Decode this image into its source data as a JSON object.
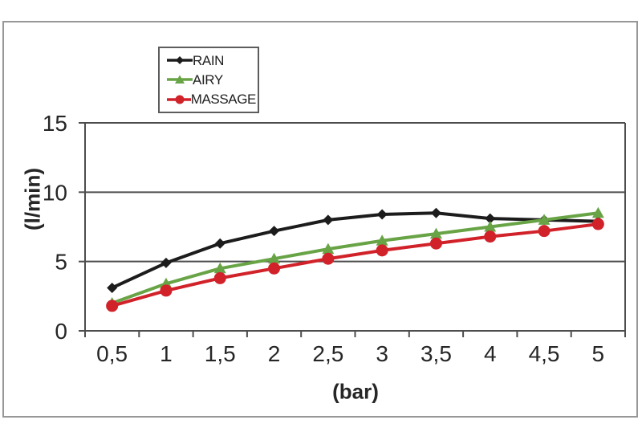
{
  "chart_data": {
    "type": "line",
    "title": "",
    "xlabel": "(bar)",
    "ylabel": "(l/min)",
    "x": [
      0.5,
      1,
      1.5,
      2,
      2.5,
      3,
      3.5,
      4,
      4.5,
      5
    ],
    "x_tick_labels": [
      "0,5",
      "1",
      "1,5",
      "2",
      "2,5",
      "3",
      "3,5",
      "4",
      "4,5",
      "5"
    ],
    "y_ticks": [
      0,
      5,
      10,
      15
    ],
    "ylim": [
      0,
      15
    ],
    "grid": true,
    "legend_position": "top-left-inside",
    "series": [
      {
        "name": "RAIN",
        "color": "#1c1c1c",
        "marker": "diamond",
        "values": [
          3.1,
          4.9,
          6.3,
          7.2,
          8.0,
          8.4,
          8.5,
          8.1,
          8.0,
          7.9
        ]
      },
      {
        "name": "AIRY",
        "color": "#68a446",
        "marker": "triangle",
        "values": [
          2.0,
          3.4,
          4.5,
          5.2,
          5.9,
          6.5,
          7.0,
          7.5,
          8.0,
          8.5
        ]
      },
      {
        "name": "MASSAGE",
        "color": "#d1222a",
        "marker": "circle",
        "values": [
          1.8,
          2.9,
          3.8,
          4.5,
          5.2,
          5.8,
          6.3,
          6.8,
          7.2,
          7.7
        ]
      }
    ]
  },
  "colors": {
    "axis": "#4d4d4d",
    "tick_text": "#262626",
    "frame_border": "#979797",
    "legend_border": "#5c5c5c",
    "background": "#ffffff"
  }
}
